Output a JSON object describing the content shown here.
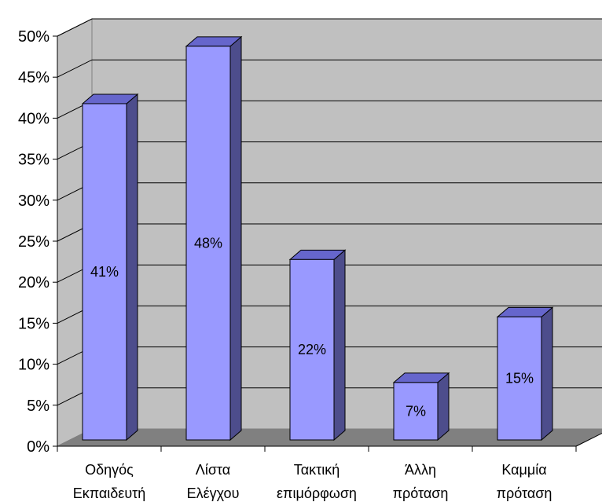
{
  "chart_data": {
    "type": "bar",
    "categories": [
      [
        "Οδηγός",
        "Εκπαιδευτή"
      ],
      [
        "Λίστα",
        "Ελέγχου"
      ],
      [
        "Τακτική",
        "επιμόρφωση"
      ],
      [
        "Άλλη",
        "πρόταση"
      ],
      [
        "Καμμία",
        "πρόταση"
      ]
    ],
    "values": [
      41,
      48,
      22,
      7,
      15
    ],
    "data_labels": [
      "41%",
      "48%",
      "22%",
      "7%",
      "15%"
    ],
    "ylim": [
      0,
      50
    ],
    "yticks": [
      0,
      5,
      10,
      15,
      20,
      25,
      30,
      35,
      40,
      45,
      50
    ],
    "ytick_labels": [
      "0%",
      "5%",
      "10%",
      "15%",
      "20%",
      "25%",
      "30%",
      "35%",
      "40%",
      "45%",
      "50%"
    ],
    "title": "",
    "xlabel": "",
    "ylabel": "",
    "grid": true,
    "legend": "none",
    "style": "3d-column"
  },
  "colors": {
    "back_wall": "#c0c0c0",
    "floor": "#808080",
    "bar_front": "#9999ff",
    "bar_top": "#6666cc",
    "bar_side": "#4d4d8c",
    "grid": "#000000"
  }
}
